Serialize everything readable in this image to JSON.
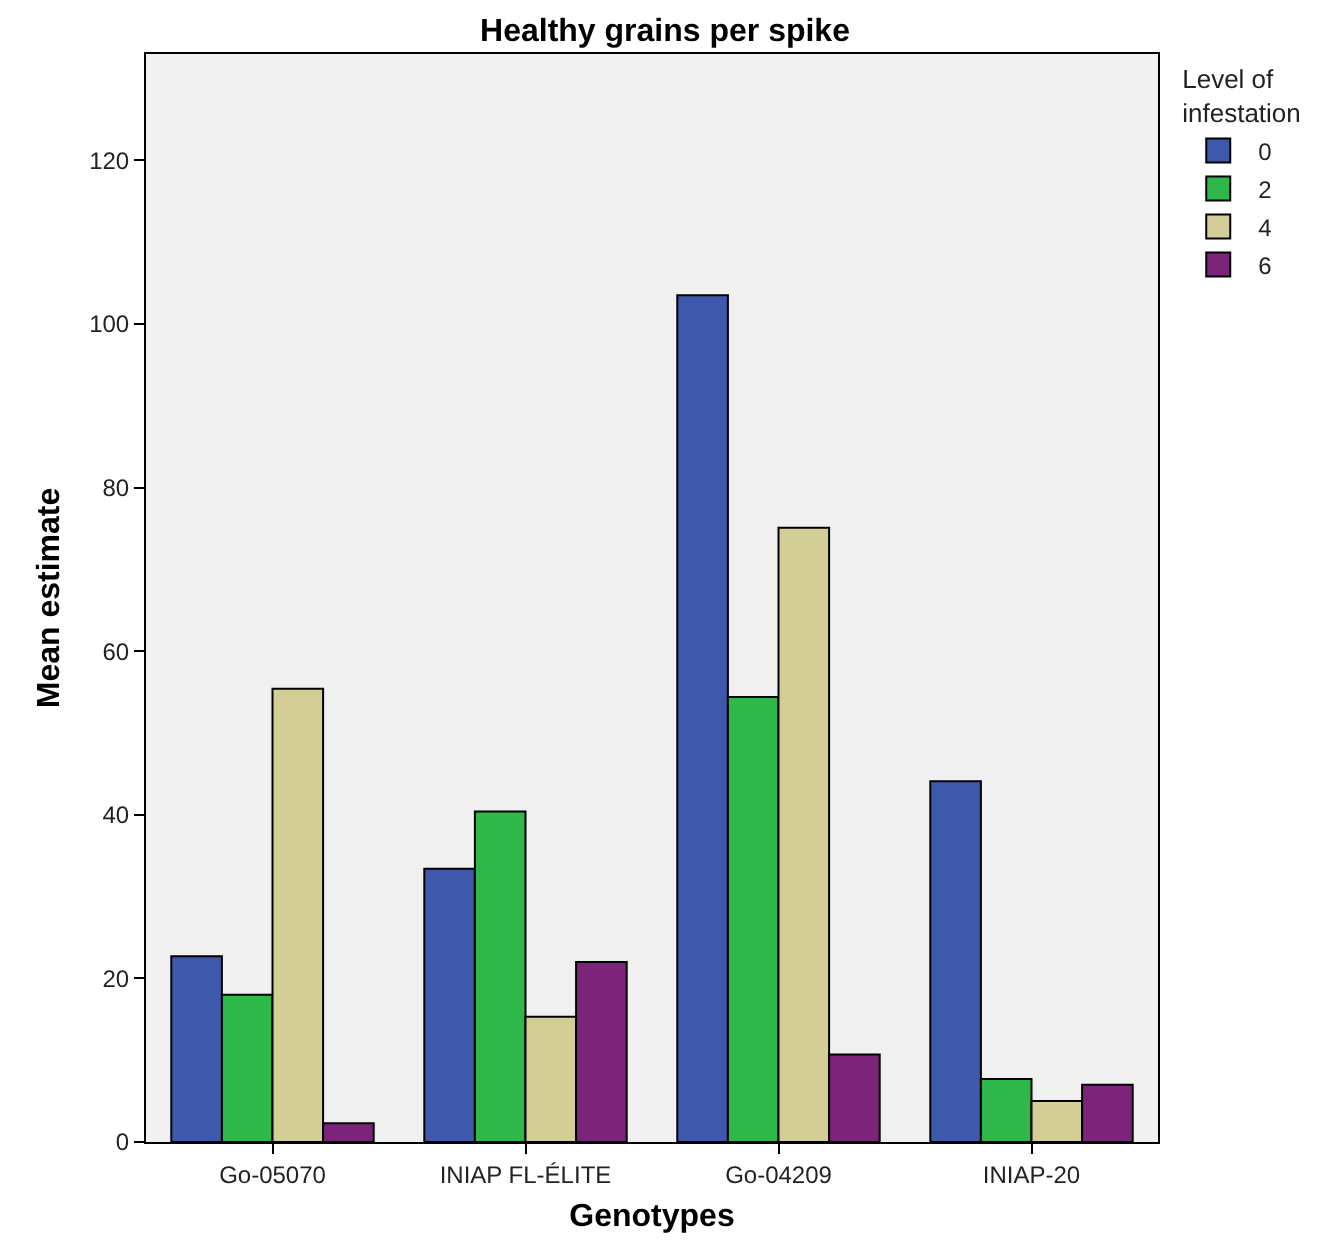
{
  "chart_data": {
    "type": "bar",
    "title": "Healthy grains per spike",
    "xlabel": "Genotypes",
    "ylabel": "Mean estimate",
    "legend_title": "Level of infestation",
    "categories": [
      "Go-05070",
      "INIAP FL-ÉLITE",
      "Go-04209",
      "INIAP-20"
    ],
    "series": [
      {
        "name": "0",
        "color": "#3e58ac",
        "values": [
          22.7,
          33.4,
          103.5,
          44.1
        ]
      },
      {
        "name": "2",
        "color": "#2fb84a",
        "values": [
          18.0,
          40.4,
          54.4,
          7.7
        ]
      },
      {
        "name": "4",
        "color": "#d2ce96",
        "values": [
          55.4,
          15.3,
          75.1,
          5.0
        ]
      },
      {
        "name": "6",
        "color": "#7b2479",
        "values": [
          2.3,
          22.0,
          10.7,
          7.0
        ]
      }
    ],
    "ylim": [
      0,
      133
    ],
    "yticks": [
      0,
      20,
      40,
      60,
      80,
      100,
      120
    ],
    "grid": false,
    "legend": "top right"
  }
}
